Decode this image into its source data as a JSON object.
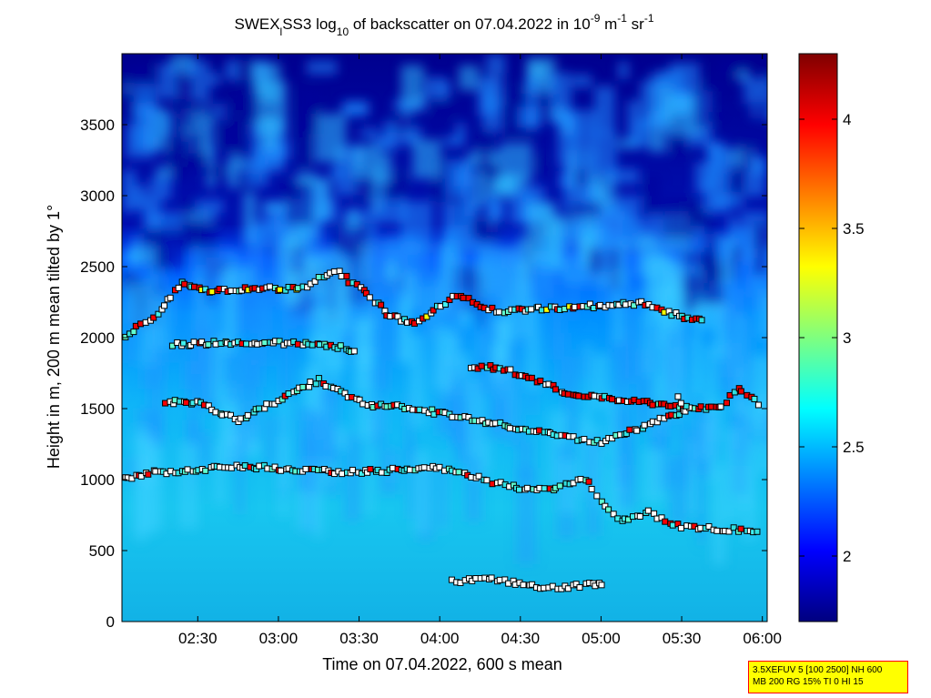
{
  "chart_data": {
    "type": "heatmap",
    "title": {
      "p1": "SWEX",
      "p1_sub": "l",
      "p2": "SS3 log",
      "p2_sub": "10",
      "p3": " of backscatter on 07.04.2022 in 10",
      "p3_sup": "-9",
      "p4": " m",
      "p4_sup": "-1",
      "p5": " sr",
      "p5_sup": "-1"
    },
    "xlabel": "Time on 07.04.2022, 600 s mean",
    "ylabel": "Height in m, 200 m mean tilted by 1°",
    "x_ticks": [
      "02:30",
      "03:00",
      "03:30",
      "04:00",
      "04:30",
      "05:00",
      "05:30",
      "06:00"
    ],
    "x_tick_hours": [
      2.5,
      3.0,
      3.5,
      4.0,
      4.5,
      5.0,
      5.5,
      6.0
    ],
    "xlim_hours": [
      2.03,
      6.03
    ],
    "y_ticks": [
      "0",
      "500",
      "1000",
      "1500",
      "2000",
      "2500",
      "3000",
      "3500"
    ],
    "y_tick_values": [
      0,
      500,
      1000,
      1500,
      2000,
      2500,
      3000,
      3500
    ],
    "ylim": [
      0,
      4000
    ],
    "colorbar": {
      "ticks": [
        "2",
        "2.5",
        "3",
        "3.5",
        "4"
      ],
      "tick_values": [
        2,
        2.5,
        3,
        3.5,
        4
      ],
      "range": [
        1.7,
        4.3
      ],
      "colormap": "jet"
    },
    "layers": [
      {
        "name": "",
        "points": [
          [
            2.05,
            1000
          ],
          [
            2.2,
            1050
          ],
          [
            2.4,
            1060
          ],
          [
            2.6,
            1080
          ],
          [
            2.8,
            1090
          ],
          [
            3.0,
            1080
          ],
          [
            3.2,
            1060
          ],
          [
            3.4,
            1055
          ],
          [
            3.6,
            1060
          ],
          [
            3.8,
            1070
          ],
          [
            4.0,
            1080
          ],
          [
            4.1,
            1060
          ],
          [
            4.2,
            1030
          ],
          [
            4.3,
            990
          ],
          [
            4.4,
            960
          ],
          [
            4.5,
            940
          ],
          [
            4.6,
            920
          ],
          [
            4.7,
            940
          ],
          [
            4.8,
            980
          ],
          [
            4.9,
            1010
          ],
          [
            5.0,
            850
          ],
          [
            5.1,
            720
          ],
          [
            5.2,
            730
          ],
          [
            5.3,
            780
          ],
          [
            5.4,
            700
          ],
          [
            5.5,
            670
          ],
          [
            5.6,
            660
          ],
          [
            5.7,
            655
          ],
          [
            5.8,
            650
          ],
          [
            5.9,
            645
          ],
          [
            6.0,
            640
          ]
        ]
      },
      {
        "name": "",
        "points": [
          [
            4.08,
            280
          ],
          [
            4.15,
            285
          ],
          [
            4.25,
            300
          ],
          [
            4.35,
            295
          ],
          [
            4.45,
            275
          ],
          [
            4.55,
            255
          ],
          [
            4.65,
            245
          ],
          [
            4.75,
            245
          ],
          [
            4.85,
            250
          ],
          [
            4.95,
            260
          ],
          [
            5.03,
            270
          ]
        ]
      },
      {
        "name": "",
        "points": [
          [
            2.05,
            2000
          ],
          [
            2.15,
            2100
          ],
          [
            2.25,
            2150
          ],
          [
            2.4,
            2400
          ],
          [
            2.55,
            2330
          ],
          [
            3.15,
            2350
          ],
          [
            3.25,
            2420
          ],
          [
            3.35,
            2480
          ],
          [
            3.55,
            2300
          ],
          [
            3.7,
            2150
          ],
          [
            3.85,
            2100
          ],
          [
            4.1,
            2300
          ],
          [
            4.2,
            2250
          ],
          [
            4.3,
            2200
          ],
          [
            4.4,
            2180
          ],
          [
            4.55,
            2200
          ],
          [
            5.25,
            2240
          ],
          [
            5.35,
            2200
          ],
          [
            5.5,
            2150
          ],
          [
            5.65,
            2130
          ]
        ]
      },
      {
        "name": "",
        "points": [
          [
            2.35,
            1950
          ],
          [
            2.55,
            1960
          ],
          [
            2.85,
            1970
          ],
          [
            3.1,
            1960
          ],
          [
            3.35,
            1940
          ],
          [
            3.5,
            1900
          ]
        ]
      },
      {
        "name": "",
        "points": [
          [
            4.2,
            1800
          ],
          [
            4.4,
            1780
          ],
          [
            4.6,
            1700
          ],
          [
            4.7,
            1650
          ],
          [
            4.8,
            1600
          ],
          [
            5.6,
            1500
          ],
          [
            5.75,
            1520
          ],
          [
            5.85,
            1650
          ],
          [
            5.95,
            1560
          ],
          [
            6.0,
            1500
          ]
        ]
      },
      {
        "name": "",
        "points": [
          [
            2.3,
            1550
          ],
          [
            2.5,
            1540
          ],
          [
            2.75,
            1420
          ],
          [
            3.25,
            1700
          ],
          [
            3.55,
            1520
          ],
          [
            3.7,
            1530
          ],
          [
            4.8,
            1300
          ],
          [
            4.9,
            1280
          ],
          [
            5.0,
            1260
          ],
          [
            5.55,
            1500
          ],
          [
            5.45,
            1600
          ]
        ]
      }
    ]
  },
  "info_box": {
    "line1": "3.5XEFUV 5 [100 2500] NH 600",
    "line2": "MB 200 RG 15% TI 0 HI 15"
  }
}
